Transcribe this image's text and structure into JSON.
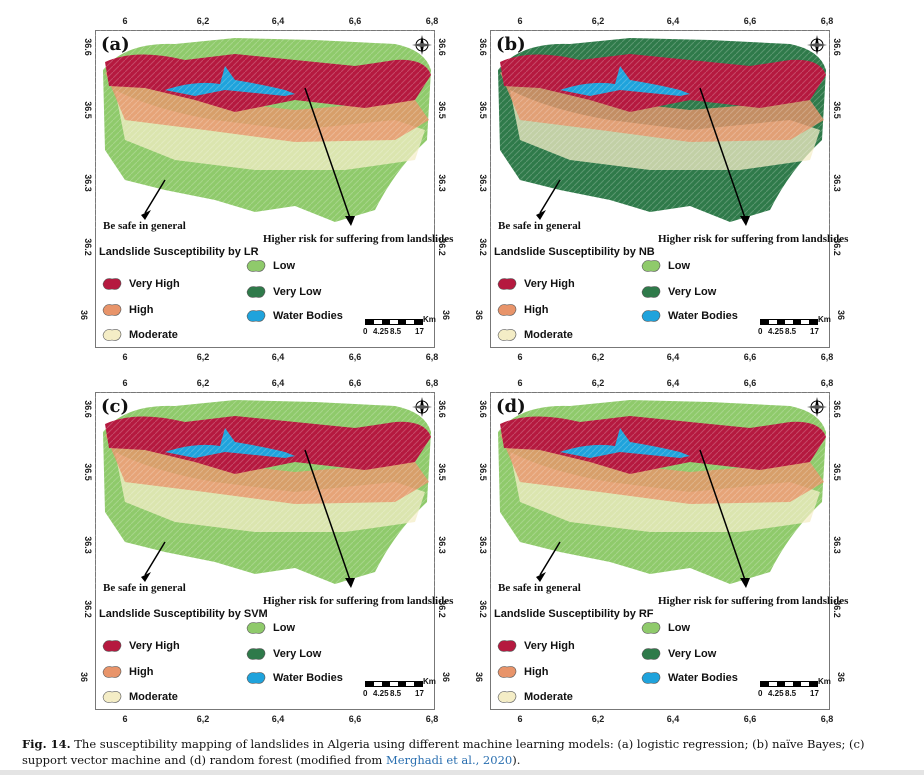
{
  "figure": {
    "lon_ticks": [
      "6",
      "6,2",
      "6,4",
      "6,6",
      "6,8"
    ],
    "lat_ticks": [
      "36.6",
      "36.5",
      "36.3",
      "36.2",
      "36"
    ],
    "annotations": {
      "safe": "Be safe in general",
      "risk": "Higher risk for suffering from landslides"
    },
    "legend_labels": {
      "very_high": "Very High",
      "high": "High",
      "moderate": "Moderate",
      "low": "Low",
      "very_low": "Very Low",
      "water": "Water Bodies"
    },
    "colors": {
      "very_high": "#b5193f",
      "high": "#e8946a",
      "moderate": "#f4edc6",
      "low": "#8fca6b",
      "very_low": "#2f7a4a",
      "water": "#1fa3dc"
    },
    "scale": {
      "unit": "Km",
      "labels": [
        "0",
        "4.25",
        "8.5",
        "17"
      ]
    },
    "compass": {
      "n": "N",
      "s": "S",
      "e": "E",
      "w": "W"
    },
    "panels": [
      {
        "label": "(a)",
        "legend_title": "Landslide Susceptibility by LR"
      },
      {
        "label": "(b)",
        "legend_title": "Landslide Susceptibility by NB"
      },
      {
        "label": "(c)",
        "legend_title": "Landslide Susceptibility by SVM"
      },
      {
        "label": "(d)",
        "legend_title": "Landslide Susceptibility by RF"
      }
    ]
  },
  "caption": {
    "fig_label": "Fig. 14.",
    "text": " The susceptibility mapping of landslides in Algeria using different machine learning models: (a) logistic regression; (b) naïve Bayes; (c) support vector machine and (d) random forest (modified from ",
    "ref": "Merghadi et al., 2020",
    "end": ")."
  }
}
